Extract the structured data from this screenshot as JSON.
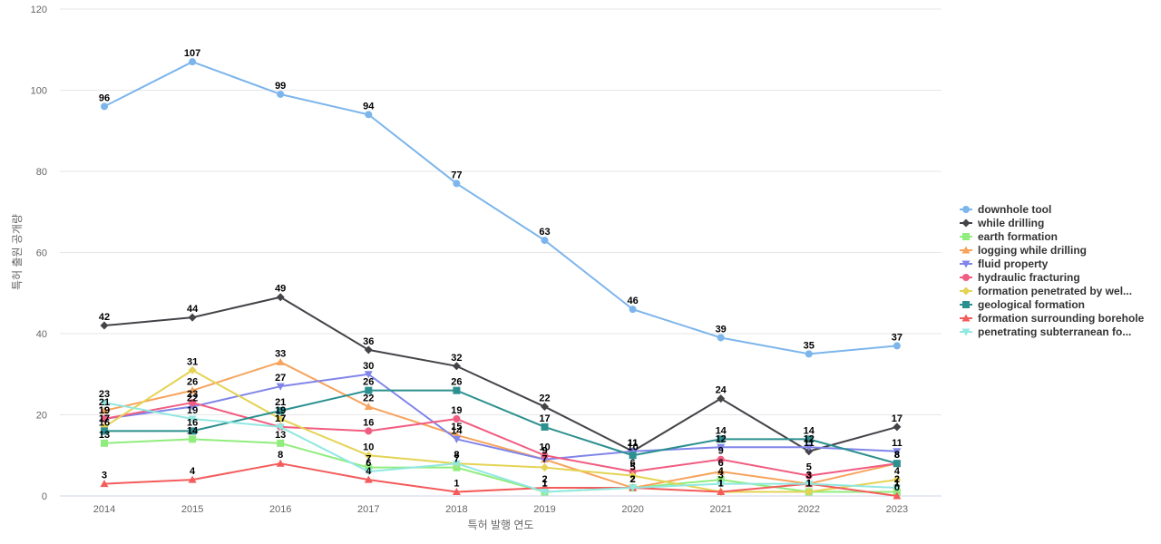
{
  "chart_data": {
    "type": "line",
    "xlabel": "특허 발행 연도",
    "ylabel": "특허 출원 공개량",
    "ylim": [
      0,
      120
    ],
    "yticks": [
      0,
      20,
      40,
      60,
      80,
      100,
      120
    ],
    "grid": true,
    "legend_position": "right",
    "categories": [
      "2014",
      "2015",
      "2016",
      "2017",
      "2018",
      "2019",
      "2020",
      "2021",
      "2022",
      "2023"
    ],
    "series": [
      {
        "name": "downhole tool",
        "color": "#7cb5ec",
        "marker": "circle",
        "values": [
          96,
          107,
          99,
          94,
          77,
          63,
          46,
          39,
          35,
          37
        ]
      },
      {
        "name": "while drilling",
        "color": "#434348",
        "marker": "diamond",
        "values": [
          42,
          44,
          49,
          36,
          32,
          22,
          11,
          24,
          11,
          17
        ]
      },
      {
        "name": "earth formation",
        "color": "#90ed7d",
        "marker": "square",
        "values": [
          13,
          14,
          13,
          7,
          7,
          1,
          2,
          4,
          1,
          1
        ]
      },
      {
        "name": "logging while drilling",
        "color": "#f7a35c",
        "marker": "triangle",
        "values": [
          21,
          26,
          33,
          22,
          15,
          9,
          2,
          6,
          3,
          8
        ]
      },
      {
        "name": "fluid property",
        "color": "#8085e9",
        "marker": "triangle-down",
        "values": [
          19,
          22,
          27,
          30,
          14,
          9,
          11,
          12,
          12,
          11
        ]
      },
      {
        "name": "hydraulic fracturing",
        "color": "#f15c80",
        "marker": "circle",
        "values": [
          19,
          23,
          17,
          16,
          19,
          10,
          6,
          9,
          5,
          8
        ]
      },
      {
        "name": "formation penetrated by wel...",
        "color": "#e4d354",
        "marker": "diamond",
        "values": [
          17,
          31,
          19,
          10,
          8,
          7,
          5,
          1,
          1,
          4
        ]
      },
      {
        "name": "geological formation",
        "color": "#2b908f",
        "marker": "square",
        "values": [
          16,
          16,
          21,
          26,
          26,
          17,
          10,
          14,
          14,
          8
        ]
      },
      {
        "name": "formation surrounding borehole",
        "color": "#f45b5b",
        "marker": "triangle",
        "values": [
          3,
          4,
          8,
          4,
          1,
          2,
          2,
          1,
          3,
          0
        ]
      },
      {
        "name": "penetrating subterranean fo...",
        "color": "#91e8e1",
        "marker": "triangle-down",
        "values": [
          23,
          19,
          17,
          6,
          8,
          1,
          2,
          3,
          3,
          2
        ]
      }
    ],
    "data_labels": [
      {
        "series": 0,
        "points": [
          0,
          1,
          2,
          3,
          4,
          5,
          6,
          7,
          8,
          9
        ]
      },
      {
        "series": 1,
        "points": [
          0,
          1,
          2,
          3,
          4,
          5,
          6,
          7,
          8,
          9
        ]
      },
      {
        "series": 2,
        "points": [
          0,
          1,
          2,
          3,
          4,
          5,
          6,
          7,
          8,
          9
        ]
      },
      {
        "series": 3,
        "points": [
          0,
          1,
          2,
          3,
          4,
          5,
          6,
          7,
          8,
          9
        ]
      },
      {
        "series": 4,
        "points": [
          0,
          1,
          2,
          3,
          4,
          5,
          6,
          7,
          8,
          9
        ]
      },
      {
        "series": 5,
        "points": [
          0,
          1,
          2,
          3,
          4,
          5,
          6,
          7,
          8,
          9
        ]
      },
      {
        "series": 6,
        "points": [
          0,
          1,
          2,
          3,
          4,
          5,
          6,
          7,
          8,
          9
        ]
      },
      {
        "series": 7,
        "points": [
          0,
          1,
          2,
          3,
          4,
          5,
          6,
          7,
          8,
          9
        ]
      },
      {
        "series": 8,
        "points": [
          0,
          1,
          2,
          3,
          4,
          5,
          6,
          7,
          8,
          9
        ]
      },
      {
        "series": 9,
        "points": [
          0,
          1,
          2,
          3,
          4,
          5,
          6,
          7,
          8,
          9
        ]
      }
    ]
  }
}
